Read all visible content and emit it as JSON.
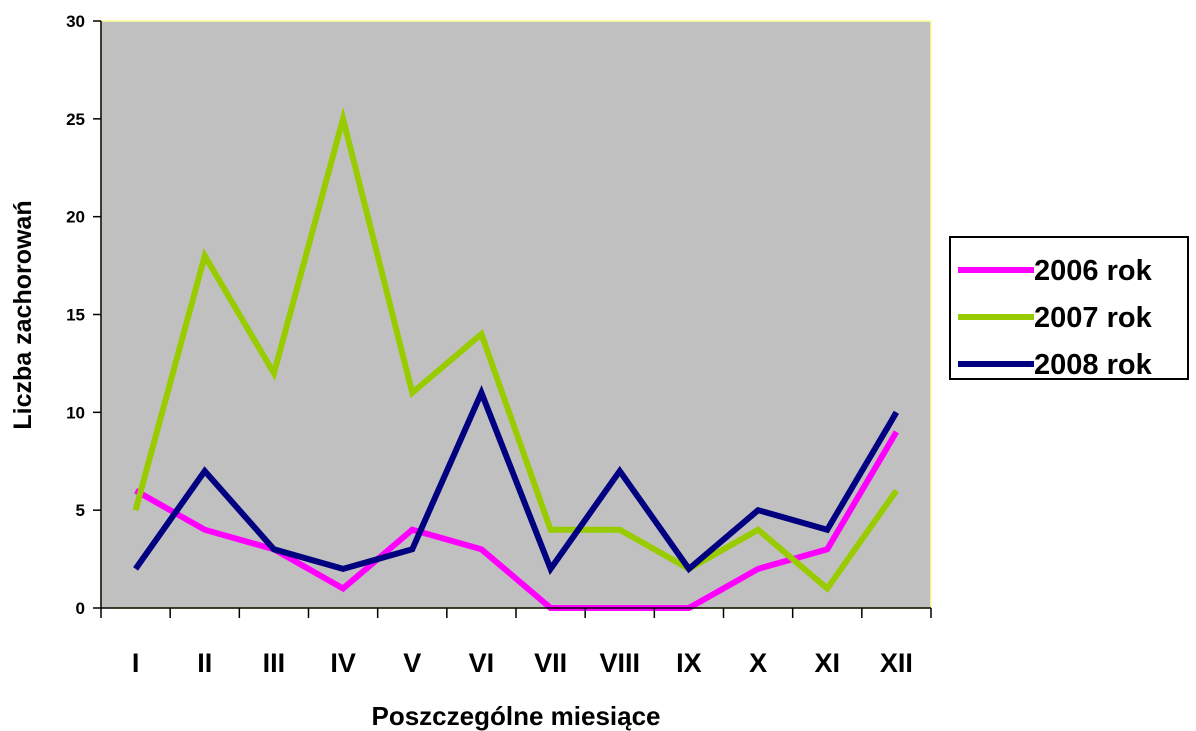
{
  "chart_data": {
    "type": "line",
    "title": "",
    "xlabel": "Poszczególne miesiące",
    "ylabel": "Liczba zachorowań",
    "categories": [
      "I",
      "II",
      "III",
      "IV",
      "V",
      "VI",
      "VII",
      "VIII",
      "IX",
      "X",
      "XI",
      "XII"
    ],
    "ylim": [
      0,
      30
    ],
    "yticks": [
      0,
      5,
      10,
      15,
      20,
      25,
      30
    ],
    "grid": false,
    "legend_position": "right",
    "plot_background": "#c0c0c0",
    "series": [
      {
        "name": "2006 rok",
        "color": "#ff00ff",
        "values": [
          6,
          4,
          3,
          1,
          4,
          3,
          0,
          0,
          0,
          2,
          3,
          9
        ]
      },
      {
        "name": "2007 rok",
        "color": "#99cc00",
        "values": [
          5,
          18,
          12,
          25,
          11,
          14,
          4,
          4,
          2,
          4,
          1,
          6
        ]
      },
      {
        "name": "2008 rok",
        "color": "#000080",
        "values": [
          2,
          7,
          3,
          2,
          3,
          11,
          2,
          7,
          2,
          5,
          4,
          10
        ]
      }
    ]
  }
}
